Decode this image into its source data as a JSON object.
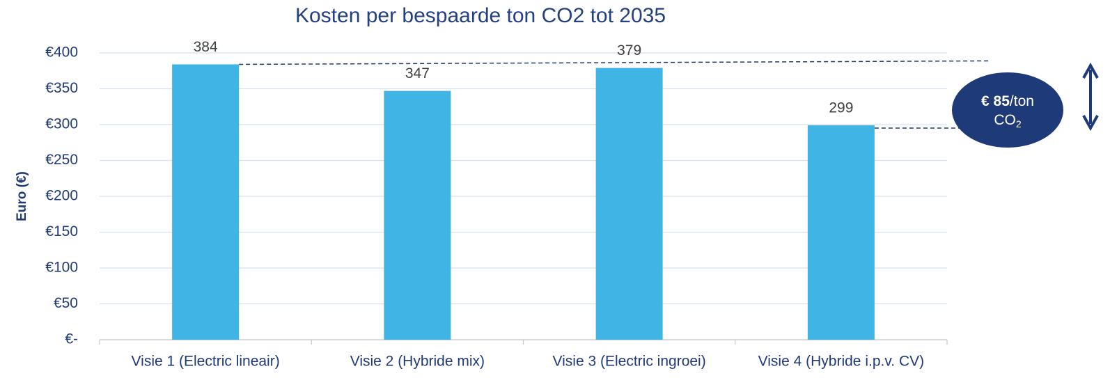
{
  "chart_data": {
    "type": "bar",
    "title": "Kosten per bespaarde ton CO2 tot 2035",
    "y_label": "Euro (€)",
    "categories": [
      "Visie 1 (Electric lineair)",
      "Visie 2 (Hybride mix)",
      "Visie 3 (Electric ingroei)",
      "Visie 4 (Hybride i.p.v. CV)"
    ],
    "values": [
      384,
      347,
      379,
      299
    ],
    "color": "#41b4e6",
    "ylim": [
      0,
      400
    ],
    "yticks": [
      {
        "value": 0,
        "label": "€-"
      },
      {
        "value": 50,
        "label": "€50"
      },
      {
        "value": 100,
        "label": "€100"
      },
      {
        "value": 150,
        "label": "€150"
      },
      {
        "value": 200,
        "label": "€200"
      },
      {
        "value": 250,
        "label": "€250"
      },
      {
        "value": 300,
        "label": "€300"
      },
      {
        "value": 350,
        "label": "€350"
      },
      {
        "value": 400,
        "label": "€400"
      }
    ],
    "grid": true,
    "annotation": {
      "bold": "€ 85",
      "rest": "/ton",
      "line2": "CO",
      "sub": "2"
    }
  }
}
